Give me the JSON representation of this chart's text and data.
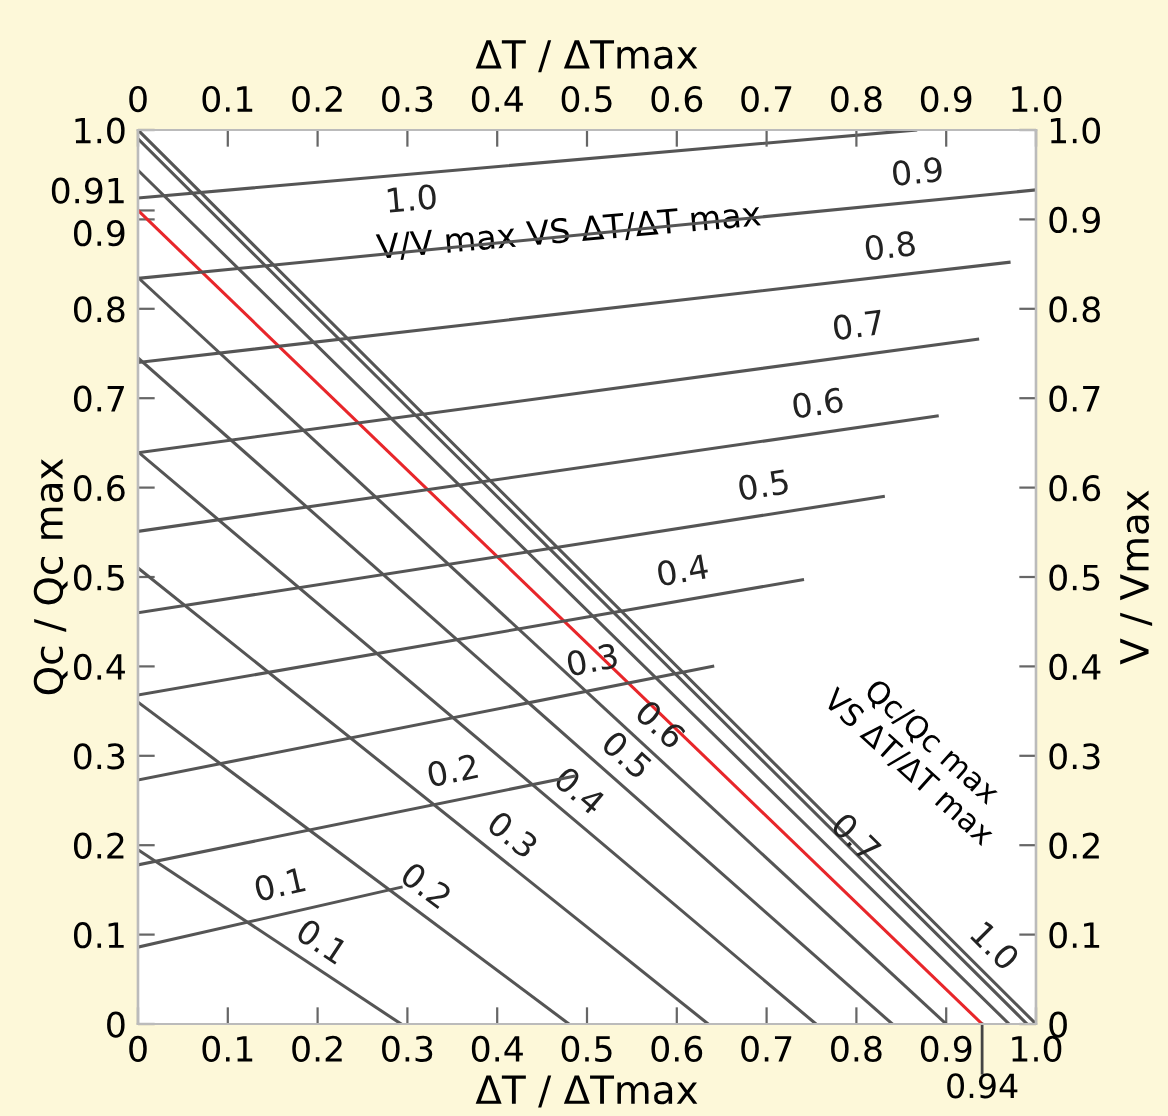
{
  "chart_data": {
    "type": "line",
    "xlabel": "ΔT / ΔTmax",
    "x2label": "ΔT / ΔTmax",
    "ylabel": "Qc / Qc max",
    "y2label": "V / Vmax",
    "xlim": [
      0,
      1
    ],
    "ylim": [
      0,
      1
    ],
    "x2lim": [
      0,
      1
    ],
    "y2lim": [
      0,
      1
    ],
    "xticks": [
      0,
      0.1,
      0.2,
      0.3,
      0.4,
      0.5,
      0.6,
      0.7,
      0.8,
      0.9,
      {
        "value": 1,
        "label": "1.0"
      }
    ],
    "x2ticks": [
      0,
      0.1,
      0.2,
      0.3,
      0.4,
      0.5,
      0.6,
      0.7,
      0.8,
      0.9,
      {
        "value": 1,
        "label": "1.0"
      }
    ],
    "yticks": [
      0,
      0.1,
      0.2,
      0.3,
      0.4,
      0.5,
      0.6,
      0.7,
      0.8,
      0.9,
      0.91,
      {
        "value": 1,
        "label": "1.0"
      }
    ],
    "y2ticks": [
      0,
      0.1,
      0.2,
      0.3,
      0.4,
      0.5,
      0.6,
      0.7,
      0.8,
      0.9,
      {
        "value": 1,
        "label": "1.0"
      }
    ],
    "grid": false,
    "legend": false,
    "marker": "none",
    "line_style": "solid",
    "series": [
      {
        "name": "0.1",
        "color": "#555555",
        "x": [
          0,
          0.293
        ],
        "values": [
          0.195,
          0
        ]
      },
      {
        "name": "0.2",
        "color": "#555555",
        "x": [
          0,
          0.48
        ],
        "values": [
          0.36,
          0
        ]
      },
      {
        "name": "0.3",
        "color": "#555555",
        "x": [
          0,
          0.635
        ],
        "values": [
          0.51,
          0
        ]
      },
      {
        "name": "0.4",
        "color": "#555555",
        "x": [
          0,
          0.755
        ],
        "values": [
          0.64,
          0
        ]
      },
      {
        "name": "0.5",
        "color": "#555555",
        "x": [
          0,
          0.84
        ],
        "values": [
          0.745,
          0
        ]
      },
      {
        "name": "0.6",
        "color": "#555555",
        "x": [
          0,
          0.9
        ],
        "values": [
          0.835,
          0
        ]
      },
      {
        "color": "#e8262a",
        "x": [
          0,
          0.94
        ],
        "values": [
          0.91,
          0
        ]
      },
      {
        "name": "0.7",
        "color": "#555555",
        "x": [
          0,
          0.97
        ],
        "values": [
          0.955,
          0
        ]
      },
      {
        "color": "#555555",
        "x": [
          0,
          0.99
        ],
        "values": [
          0.99,
          0
        ]
      },
      {
        "name": "1.0",
        "color": "#555555",
        "x": [
          0,
          1.0
        ],
        "values": [
          1.0,
          0
        ]
      },
      {
        "name": "1.0",
        "color": "#555555",
        "axis": "y2",
        "x": [
          0,
          0.866
        ],
        "values": [
          0.924,
          1.0
        ]
      },
      {
        "name": "0.9",
        "color": "#555555",
        "axis": "y2",
        "x": [
          0,
          1.0
        ],
        "values": [
          0.834,
          0.933
        ]
      },
      {
        "name": "0.8",
        "color": "#555555",
        "axis": "y2",
        "x": [
          0,
          0.97
        ],
        "values": [
          0.74,
          0.852
        ]
      },
      {
        "name": "0.7",
        "color": "#555555",
        "axis": "y2",
        "x": [
          0,
          0.935
        ],
        "values": [
          0.639,
          0.766
        ]
      },
      {
        "name": "0.6",
        "color": "#555555",
        "axis": "y2",
        "x": [
          0,
          0.89
        ],
        "values": [
          0.551,
          0.68
        ]
      },
      {
        "name": "0.5",
        "color": "#555555",
        "axis": "y2",
        "x": [
          0,
          0.83
        ],
        "values": [
          0.46,
          0.59
        ]
      },
      {
        "name": "0.4",
        "color": "#555555",
        "axis": "y2",
        "x": [
          0,
          0.74
        ],
        "values": [
          0.368,
          0.497
        ]
      },
      {
        "name": "0.3",
        "color": "#555555",
        "axis": "y2",
        "x": [
          0,
          0.64
        ],
        "values": [
          0.273,
          0.4
        ]
      },
      {
        "name": "0.2",
        "color": "#555555",
        "axis": "y2",
        "x": [
          0,
          0.485
        ],
        "values": [
          0.178,
          0.277
        ]
      },
      {
        "name": "0.1",
        "color": "#555555",
        "axis": "y2",
        "x": [
          0,
          0.293
        ],
        "values": [
          0.086,
          0.153
        ]
      }
    ],
    "annotations": [
      "V/V max VS ΔT/ΔT max",
      "Qc/Qc max\nVS ΔT/ΔT max",
      {
        "text": "0.94",
        "x": 0.94,
        "y": 0
      }
    ]
  }
}
